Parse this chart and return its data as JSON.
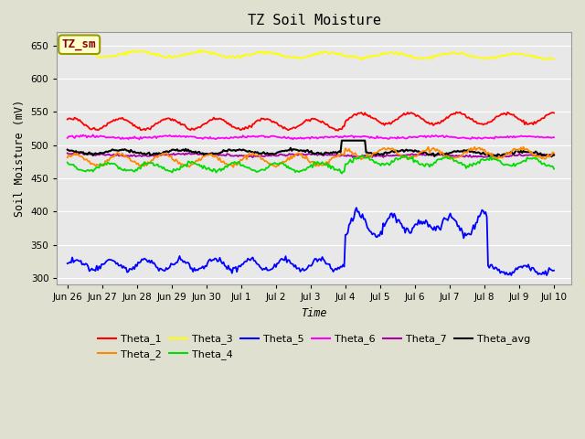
{
  "title": "TZ Soil Moisture",
  "xlabel": "Time",
  "ylabel": "Soil Moisture (mV)",
  "ylim": [
    290,
    670
  ],
  "yticks": [
    300,
    350,
    400,
    450,
    500,
    550,
    600,
    650
  ],
  "fig_bg": "#e0e0d0",
  "plot_bg": "#e8e8e8",
  "legend_label": "TZ_sm",
  "series_colors": {
    "Theta_1": "#ff0000",
    "Theta_2": "#ff8800",
    "Theta_3": "#ffff00",
    "Theta_4": "#00dd00",
    "Theta_5": "#0000ff",
    "Theta_6": "#ff00ff",
    "Theta_7": "#aa00aa",
    "Theta_avg": "#000000"
  },
  "xtick_labels": [
    "Jun 26",
    "Jun 27",
    "Jun 28",
    "Jun 29",
    "Jun 30",
    "Jul 1",
    "Jul 2",
    "Jul 3",
    "Jul 4",
    "Jul 5",
    "Jul 6",
    "Jul 7",
    "Jul 8",
    "Jul 9",
    "Jul 10"
  ],
  "xtick_positions": [
    0,
    1,
    2,
    3,
    4,
    5,
    6,
    7,
    8,
    9,
    10,
    11,
    12,
    13,
    14
  ]
}
